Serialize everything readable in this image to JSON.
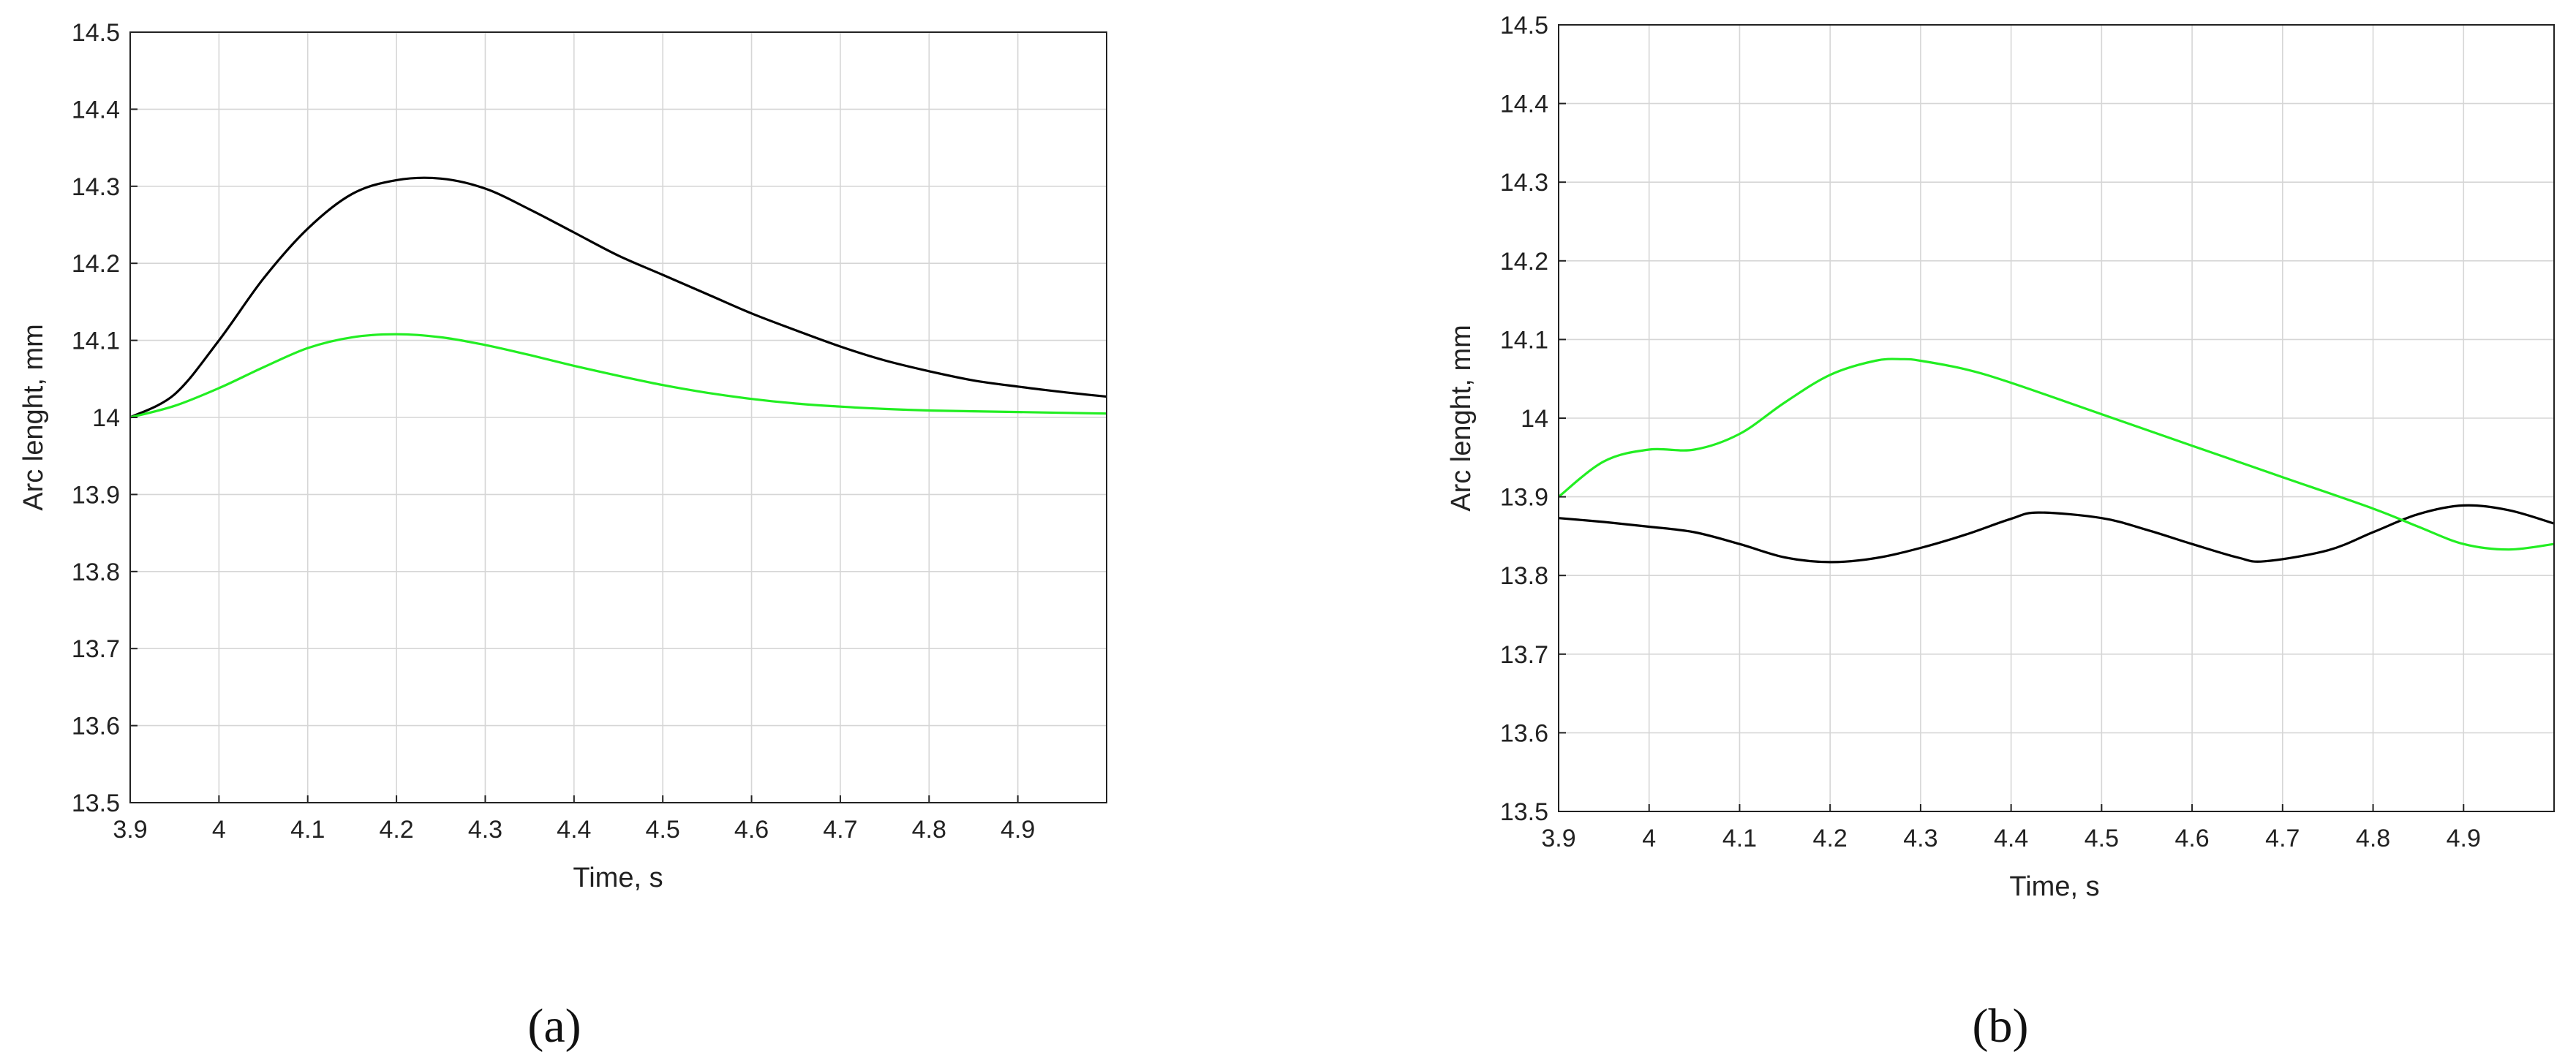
{
  "chart_data": [
    {
      "type": "line",
      "panel_label": "(a)",
      "xlabel": "Time, s",
      "ylabel": "Arc lenght, mm",
      "xlim": [
        3.9,
        5.0
      ],
      "ylim": [
        13.5,
        14.5
      ],
      "xticks": [
        "3.9",
        "4",
        "4.1",
        "4.2",
        "4.3",
        "4.4",
        "4.5",
        "4.6",
        "4.7",
        "4.8",
        "4.9"
      ],
      "yticks": [
        "13.5",
        "13.6",
        "13.7",
        "13.8",
        "13.9",
        "14",
        "14.1",
        "14.2",
        "14.3",
        "14.4",
        "14.5"
      ],
      "grid": true,
      "series": [
        {
          "color": "#000000",
          "x": [
            3.9,
            3.95,
            4.0,
            4.05,
            4.1,
            4.15,
            4.2,
            4.25,
            4.3,
            4.35,
            4.4,
            4.45,
            4.5,
            4.55,
            4.6,
            4.65,
            4.7,
            4.75,
            4.8,
            4.85,
            4.9,
            4.95,
            5.0
          ],
          "y": [
            14.0,
            14.03,
            14.1,
            14.18,
            14.245,
            14.29,
            14.308,
            14.31,
            14.297,
            14.27,
            14.24,
            14.21,
            14.185,
            14.16,
            14.135,
            14.113,
            14.092,
            14.074,
            14.06,
            14.048,
            14.04,
            14.033,
            14.027
          ]
        },
        {
          "color": "#22ee22",
          "x": [
            3.9,
            3.95,
            4.0,
            4.05,
            4.1,
            4.15,
            4.2,
            4.25,
            4.3,
            4.35,
            4.4,
            4.45,
            4.5,
            4.55,
            4.6,
            4.65,
            4.7,
            4.75,
            4.8,
            4.85,
            4.9,
            4.95,
            5.0
          ],
          "y": [
            14.0,
            14.015,
            14.038,
            14.065,
            14.09,
            14.104,
            14.108,
            14.104,
            14.094,
            14.081,
            14.067,
            14.054,
            14.042,
            14.032,
            14.024,
            14.018,
            14.014,
            14.011,
            14.009,
            14.008,
            14.007,
            14.006,
            14.005
          ]
        }
      ]
    },
    {
      "type": "line",
      "panel_label": "(b)",
      "xlabel": "Time, s",
      "ylabel": "Arc lenght, mm",
      "xlim": [
        3.9,
        5.0
      ],
      "ylim": [
        13.5,
        14.5
      ],
      "xticks": [
        "3.9",
        "4",
        "4.1",
        "4.2",
        "4.3",
        "4.4",
        "4.5",
        "4.6",
        "4.7",
        "4.8",
        "4.9"
      ],
      "yticks": [
        "13.5",
        "13.6",
        "13.7",
        "13.8",
        "13.9",
        "14",
        "14.1",
        "14.2",
        "14.3",
        "14.4",
        "14.5"
      ],
      "grid": true,
      "series": [
        {
          "color": "#000000",
          "x": [
            3.9,
            3.95,
            4.0,
            4.05,
            4.1,
            4.15,
            4.2,
            4.25,
            4.3,
            4.35,
            4.4,
            4.43,
            4.5,
            4.55,
            4.6,
            4.65,
            4.68,
            4.75,
            4.8,
            4.85,
            4.9,
            4.95,
            5.0
          ],
          "y": [
            13.873,
            13.868,
            13.862,
            13.855,
            13.84,
            13.823,
            13.817,
            13.822,
            13.835,
            13.852,
            13.872,
            13.88,
            13.873,
            13.858,
            13.84,
            13.823,
            13.818,
            13.832,
            13.855,
            13.878,
            13.889,
            13.883,
            13.866
          ]
        },
        {
          "color": "#22ee22",
          "x": [
            3.9,
            3.95,
            4.0,
            4.05,
            4.1,
            4.15,
            4.2,
            4.25,
            4.28,
            4.3,
            4.35,
            4.4,
            4.5,
            4.6,
            4.7,
            4.8,
            4.85,
            4.9,
            4.95,
            5.0
          ],
          "y": [
            13.9,
            13.945,
            13.96,
            13.96,
            13.98,
            14.02,
            14.055,
            14.073,
            14.075,
            14.073,
            14.062,
            14.045,
            14.005,
            13.965,
            13.925,
            13.885,
            13.862,
            13.84,
            13.833,
            13.84
          ]
        }
      ]
    }
  ]
}
